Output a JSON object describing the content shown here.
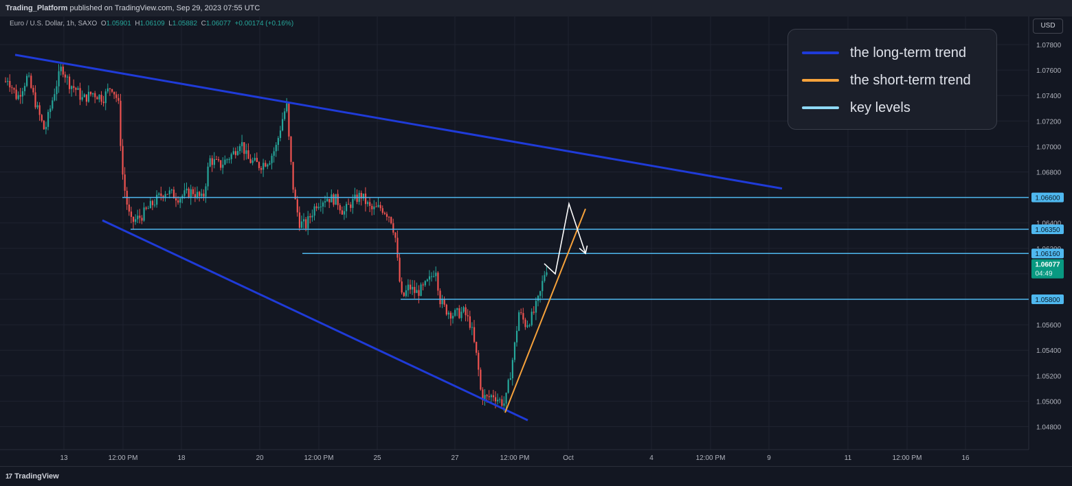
{
  "header": {
    "publisher": "Trading_Platform",
    "published_text": "published on TradingView.com, Sep 29, 2023 07:55 UTC"
  },
  "symbol_bar": {
    "symbol": "Euro / U.S. Dollar, 1h, SAXO",
    "o_label": "O",
    "o_value": "1.05901",
    "h_label": "H",
    "h_value": "1.06109",
    "l_label": "L",
    "l_value": "1.05882",
    "c_label": "C",
    "c_value": "1.06077",
    "change": "+0.00174 (+0.16%)"
  },
  "currency_button": "USD",
  "legend": [
    {
      "label": "the long-term trend",
      "color": "#1f3bd8"
    },
    {
      "label": "the short-term trend",
      "color": "#f7a23b"
    },
    {
      "label": "key levels",
      "color": "#8fd9f6"
    }
  ],
  "footer": {
    "brand": "TradingView",
    "logo_mark": "17"
  },
  "colors": {
    "background": "#131722",
    "bull": "#26a69a",
    "bear": "#ef5350",
    "grid": "#1f2330",
    "long_trend": "#1f3bd8",
    "short_trend": "#f7a23b",
    "key_level": "#4fb8ef",
    "current_price_bg": "#089981"
  },
  "chart_data": {
    "type": "candlestick",
    "symbol": "Euro / U.S. Dollar",
    "timeframe": "1h",
    "x_axis": {
      "tick_labels": [
        "13",
        "12:00 PM",
        "18",
        "20",
        "12:00 PM",
        "25",
        "27",
        "12:00 PM",
        "Oct",
        "4",
        "12:00 PM",
        "9",
        "11",
        "12:00 PM",
        "16"
      ]
    },
    "y_axis": {
      "ylim": [
        1.047,
        1.079
      ],
      "tick_labels": [
        "1.07800",
        "1.07600",
        "1.07400",
        "1.07200",
        "1.07000",
        "1.06800",
        "1.06600",
        "1.06400",
        "1.06200",
        "1.06000",
        "1.05800",
        "1.05600",
        "1.05400",
        "1.05200",
        "1.05000",
        "1.04800"
      ]
    },
    "key_levels": [
      {
        "label": "1.06600",
        "value": 1.066
      },
      {
        "label": "1.06350",
        "value": 1.0635
      },
      {
        "label": "1.06160",
        "value": 1.0616
      },
      {
        "label": "1.05800",
        "value": 1.058
      }
    ],
    "current_price": {
      "label": "1.06077",
      "countdown": "04:49",
      "value": 1.06077
    },
    "price_path": [
      [
        0,
        1.0735
      ],
      [
        10,
        1.0755
      ],
      [
        25,
        1.0738
      ],
      [
        40,
        1.0755
      ],
      [
        55,
        1.0728
      ],
      [
        65,
        1.0712
      ],
      [
        80,
        1.0745
      ],
      [
        90,
        1.0763
      ],
      [
        100,
        1.075
      ],
      [
        110,
        1.0745
      ],
      [
        120,
        1.0737
      ],
      [
        135,
        1.0742
      ],
      [
        150,
        1.0738
      ],
      [
        162,
        1.0748
      ],
      [
        172,
        1.0735
      ],
      [
        178,
        1.068
      ],
      [
        183,
        1.066
      ],
      [
        190,
        1.064
      ],
      [
        205,
        1.0645
      ],
      [
        222,
        1.0655
      ],
      [
        240,
        1.0665
      ],
      [
        260,
        1.066
      ],
      [
        280,
        1.0665
      ],
      [
        295,
        1.0658
      ],
      [
        305,
        1.069
      ],
      [
        320,
        1.0685
      ],
      [
        340,
        1.0695
      ],
      [
        350,
        1.0705
      ],
      [
        360,
        1.069
      ],
      [
        378,
        1.0685
      ],
      [
        392,
        1.069
      ],
      [
        402,
        1.07
      ],
      [
        410,
        1.072
      ],
      [
        417,
        1.0733
      ],
      [
        421,
        1.07
      ],
      [
        426,
        1.067
      ],
      [
        430,
        1.0655
      ],
      [
        436,
        1.064
      ],
      [
        445,
        1.0638
      ],
      [
        460,
        1.0655
      ],
      [
        475,
        1.066
      ],
      [
        490,
        1.0658
      ],
      [
        500,
        1.0648
      ],
      [
        510,
        1.0655
      ],
      [
        525,
        1.0662
      ],
      [
        540,
        1.065
      ],
      [
        555,
        1.0652
      ],
      [
        568,
        1.0645
      ],
      [
        575,
        1.063
      ],
      [
        580,
        1.06
      ],
      [
        585,
        1.058
      ],
      [
        595,
        1.059
      ],
      [
        605,
        1.0585
      ],
      [
        615,
        1.0588
      ],
      [
        625,
        1.0595
      ],
      [
        634,
        1.0605
      ],
      [
        640,
        1.058
      ],
      [
        648,
        1.0572
      ],
      [
        660,
        1.0568
      ],
      [
        675,
        1.057
      ],
      [
        685,
        1.056
      ],
      [
        690,
        1.0545
      ],
      [
        695,
        1.053
      ],
      [
        700,
        1.0505
      ],
      [
        708,
        1.0502
      ],
      [
        718,
        1.0505
      ],
      [
        728,
        1.05
      ],
      [
        735,
        1.0498
      ],
      [
        742,
        1.052
      ],
      [
        748,
        1.054
      ],
      [
        755,
        1.057
      ],
      [
        765,
        1.056
      ],
      [
        775,
        1.0567
      ],
      [
        785,
        1.0582
      ],
      [
        792,
        1.06
      ],
      [
        797,
        1.0607
      ]
    ],
    "annotations": {
      "long_term_upper": [
        [
          22,
          1.0772
        ],
        [
          417,
          1.0735
        ],
        [
          1138,
          1.0667
        ]
      ],
      "long_term_lower": [
        [
          149,
          1.0642
        ],
        [
          768,
          1.0485
        ]
      ],
      "short_term": [
        [
          735,
          1.0491
        ],
        [
          852,
          1.0651
        ]
      ],
      "projection": [
        [
          792,
          1.0608
        ],
        [
          808,
          1.06
        ],
        [
          828,
          1.0655
        ],
        [
          852,
          1.0616
        ]
      ]
    }
  }
}
